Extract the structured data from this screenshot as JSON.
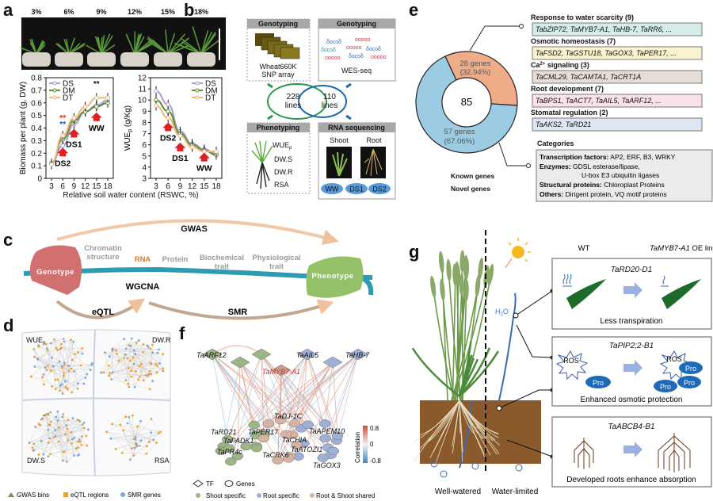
{
  "panel_labels": {
    "a": "a",
    "b": "b",
    "c": "c",
    "d": "d",
    "e": "e",
    "f": "f",
    "g": "g"
  },
  "a": {
    "percentages": [
      {
        "text": "3%",
        "color": "#111111"
      },
      {
        "text": "6%",
        "color": "#e02020"
      },
      {
        "text": "9%",
        "color": "#e02020"
      },
      {
        "text": "12%",
        "color": "#111111"
      },
      {
        "text": "15%",
        "color": "#e02020"
      },
      {
        "text": "18%",
        "color": "#111111"
      }
    ],
    "xlabel": "Relative soil water content (RSWC, %)"
  },
  "chart_data": [
    {
      "type": "line",
      "title": "",
      "xlabel": "Relative soil water content (RSWC, %)",
      "ylabel": "Biomass per plant (g, DW)",
      "x": [
        3,
        6,
        9,
        12,
        15,
        18
      ],
      "ylim": [
        0,
        0.8
      ],
      "yticks": [
        "0",
        "0.1",
        "0.2",
        "0.3",
        "0.4",
        "0.5",
        "0.6",
        "0.7",
        "0.8"
      ],
      "xticks": [
        "3",
        "6",
        "9",
        "12",
        "15",
        "18"
      ],
      "legend": "top-left",
      "grid": false,
      "series": [
        {
          "name": "DS",
          "color": "#a79ad2",
          "values": [
            0.12,
            0.26,
            0.43,
            0.53,
            0.58,
            0.62
          ]
        },
        {
          "name": "DM",
          "color": "#5f8a2e",
          "values": [
            0.12,
            0.31,
            0.46,
            0.53,
            0.57,
            0.6
          ]
        },
        {
          "name": "DT",
          "color": "#f0b47c",
          "values": [
            0.11,
            0.34,
            0.48,
            0.57,
            0.64,
            0.64
          ]
        }
      ],
      "annotations": [
        {
          "text": "DS2",
          "x": 6,
          "y": 0.2
        },
        {
          "text": "DS1",
          "x": 9,
          "y": 0.35
        },
        {
          "text": "WW",
          "x": 15,
          "y": 0.48
        }
      ],
      "significance": [
        {
          "text": "**",
          "x": 6,
          "y": 0.46,
          "color": "#e02020"
        },
        {
          "text": "**",
          "x": 6,
          "y": 0.41,
          "color": "#2a4fa8"
        },
        {
          "text": "**",
          "x": 15,
          "y": 0.73,
          "color": "#111111"
        }
      ]
    },
    {
      "type": "line",
      "title": "",
      "xlabel": "Relative soil water content (RSWC, %)",
      "ylabel_main": "WUE",
      "ylabel_sub": "p",
      "ylabel_unit": " (g/Kg)",
      "x": [
        3,
        6,
        9,
        12,
        15,
        18
      ],
      "ylim": [
        3,
        12
      ],
      "yticks": [
        "3",
        "4",
        "5",
        "6",
        "7",
        "8",
        "9",
        "10",
        "11",
        "12"
      ],
      "xticks": [
        "3",
        "6",
        "9",
        "12",
        "15",
        "18"
      ],
      "legend": "top-right",
      "grid": false,
      "series": [
        {
          "name": "DS",
          "color": "#a79ad2",
          "values": [
            10.8,
            9.6,
            7.2,
            6.1,
            5.6,
            5.2
          ]
        },
        {
          "name": "DM",
          "color": "#5f8a2e",
          "values": [
            10.0,
            9.0,
            7.0,
            6.0,
            5.5,
            5.1
          ]
        },
        {
          "name": "DT",
          "color": "#f0b47c",
          "values": [
            9.5,
            8.4,
            6.8,
            5.8,
            5.4,
            5.4
          ]
        }
      ],
      "annotations": [
        {
          "text": "DS2",
          "x": 6,
          "y": 7.5
        },
        {
          "text": "DS1",
          "x": 9,
          "y": 5.7
        },
        {
          "text": "WW",
          "x": 15,
          "y": 4.8
        }
      ]
    },
    {
      "type": "pie",
      "center_label": "85",
      "slices": [
        {
          "label": "28 genes",
          "pct": "(32.94%)",
          "value": 28,
          "color": "#eeac88"
        },
        {
          "label": "57 genes",
          "pct": "(67.06%)",
          "value": 57,
          "color": "#9ccbe4"
        }
      ]
    }
  ],
  "b": {
    "genotyping_array_title": "Genotyping",
    "genotyping_array_caption": [
      "Wheat660K",
      "SNP array"
    ],
    "genotyping_wes_title": "Genotyping",
    "genotyping_wes_caption": "WES-seq",
    "population_a": [
      "228",
      "lines"
    ],
    "population_b": [
      "110",
      "lines"
    ],
    "phenotyping_title": "Phenotyping",
    "traits": {
      "wue_main": "WUE",
      "wue_sub": "p",
      "dws": "DW.S",
      "dwr": "DW.R",
      "rsa": "RSA"
    },
    "rna_title": "RNA sequencing",
    "shoot": "Shoot",
    "root": "Root",
    "conditions": [
      "WW",
      "DS1",
      "DS2"
    ]
  },
  "c": {
    "genotype": "Genotype",
    "phenotype": "Phenotype",
    "levels": [
      {
        "lines": [
          "Chromatin",
          "structure"
        ],
        "color": "#9a9a9a"
      },
      {
        "lines": [
          "RNA"
        ],
        "color": "#e07b2a"
      },
      {
        "lines": [
          "Protein"
        ],
        "color": "#9a9a9a"
      },
      {
        "lines": [
          "Biochemical",
          "trait"
        ],
        "color": "#9a9a9a"
      },
      {
        "lines": [
          "Physiological",
          "trait"
        ],
        "color": "#9a9a9a"
      }
    ],
    "gwas": "GWAS",
    "wgcna": "WGCNA",
    "eqtl": "eQTL",
    "smr": "SMR"
  },
  "d": {
    "networks": {
      "wue_main": "WUE",
      "wue_sub": "p",
      "dwr": "DW.R",
      "dws": "DW.S",
      "rsa": "RSA"
    },
    "legend": [
      {
        "label": "GWAS bins",
        "color": "#8a8a5a",
        "shape": "triangle"
      },
      {
        "label": "eQTL regions",
        "color": "#f0a030",
        "shape": "square"
      },
      {
        "label": "SMR genes",
        "color": "#7aa8d8",
        "shape": "circle"
      }
    ]
  },
  "e": {
    "legend": [
      "Known genes",
      "Novel genes"
    ],
    "functions": [
      {
        "title": "Response to water scarcity (9)",
        "genes": "TabZIP72, TaMYB7-A1, TaHB-7, TaRR6, ...",
        "color": "#d5ecea"
      },
      {
        "title": "Osmotic homeostasis (7)",
        "genes": "TaFSD2, TaGSTU18, TaGOX3, TaPER17, ...",
        "color": "#faf3cf"
      },
      {
        "title_pre": "Ca",
        "title_sup": "2+",
        "title_post": " signaling (3)",
        "genes": "TaCML29, TaCAMTA1, TaCRT1A",
        "color": "#e6ddd6"
      },
      {
        "title": "Root development (7)",
        "genes": "TaBPS1, TaACT7, TaAIL5, TaARF12, ...",
        "color": "#f9e1e6"
      },
      {
        "title": "Stomatal regulation (2)",
        "genes": "TaAKS2, TaRD21",
        "color": "#dfe6f3"
      }
    ],
    "categories_title": "Categories",
    "categories": [
      {
        "key": "Transcription factors:",
        "value": " AP2, ERF, B3, WRKY"
      },
      {
        "key": "Enzymes:",
        "value": " GDSL esterase/lipase,"
      },
      {
        "key": "",
        "value": "U-box E3 ubiquitin ligases"
      },
      {
        "key": "Structural proteins:",
        "value": " Chloroplast Proteins"
      },
      {
        "key": "Others:",
        "value": " Dirigent protein, VQ motif proteins"
      }
    ]
  },
  "f": {
    "tfs": [
      {
        "label": "TaARF12",
        "group": "shoot"
      },
      {
        "label": "",
        "group": "shoot"
      },
      {
        "label": "",
        "group": "shoot"
      },
      {
        "label": "TaMYB7-A1",
        "group": "shared",
        "highlight": "#e03030"
      },
      {
        "label": "TaAIL5",
        "group": "root"
      },
      {
        "label": "",
        "group": "root"
      },
      {
        "label": "TaHB-7",
        "group": "root"
      }
    ],
    "gene_labels": [
      "TaDJ-1C",
      "TaRD21",
      "TaPER17",
      "TaAPEM10",
      "TaPADK1",
      "TaCHIA",
      "TaPR4c",
      "TaATOZI1",
      "TaCRK6",
      "TaGOX3"
    ],
    "colorbar": {
      "title": "Correlation",
      "max": "0.8",
      "mid": "0",
      "min": "-0.8",
      "high_color": "#c8503a",
      "low_color": "#3a8ac0"
    },
    "shape_legend": {
      "tf": "TF",
      "genes": "Genes"
    },
    "group_legend": [
      {
        "label": "Shoot specific",
        "color": "#9cb585"
      },
      {
        "label": "Root specific",
        "color": "#9fb0d6"
      },
      {
        "label": "Root & Shoot shared",
        "color": "#d5b3a3"
      }
    ]
  },
  "g": {
    "wt": "WT",
    "oe_gene": "TaMYB7-A1",
    "oe_suffix": " OE lines",
    "h2o_main": "H",
    "h2o_sub": "2",
    "h2o_end": "O",
    "boxes": [
      {
        "gene": "TaRD20-D1",
        "caption": "Less transpiration"
      },
      {
        "gene": "TaPIP2;2-B1",
        "caption": "Enhanced osmotic protection",
        "ros": "ROS",
        "pro": "Pro"
      },
      {
        "gene": "TaABCB4-B1",
        "caption": "Developed roots enhance absorption"
      }
    ],
    "well_watered": "Well-watered",
    "water_limited": "Water-limited"
  }
}
